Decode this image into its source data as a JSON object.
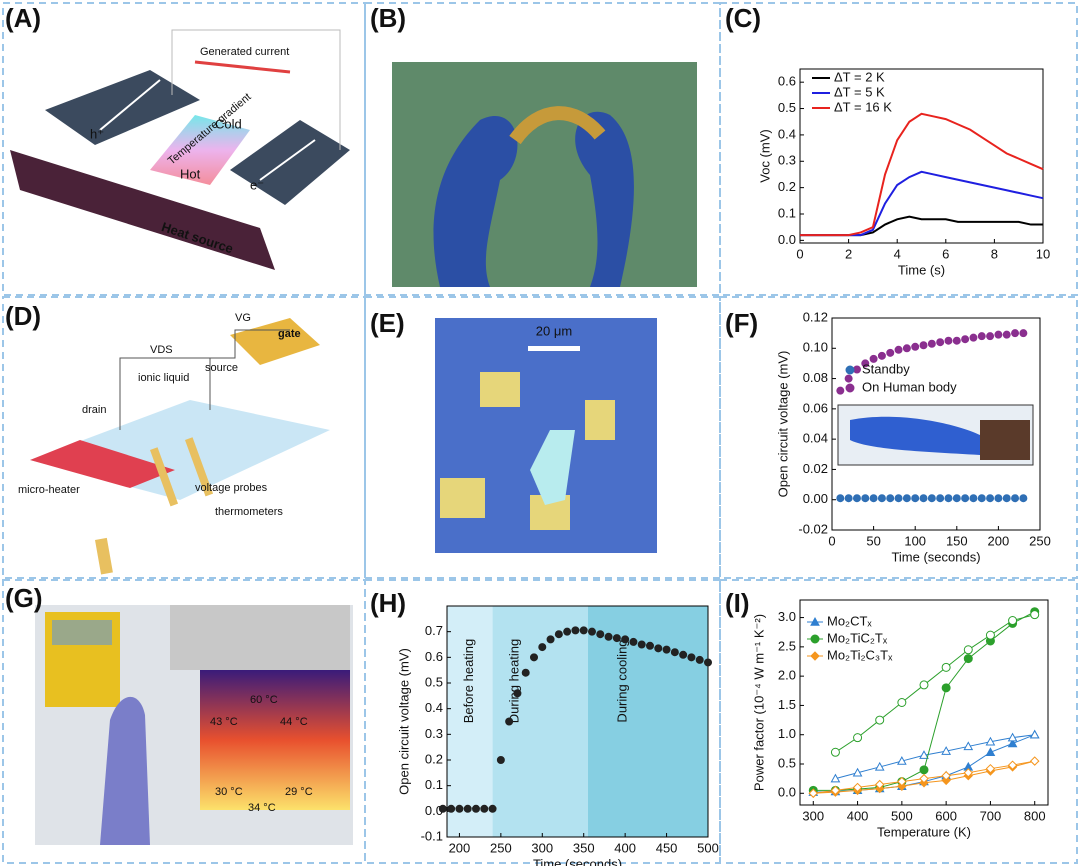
{
  "panels": [
    {
      "label": "(A)",
      "texts": [
        "Generated current",
        "Cold",
        "Hot",
        "Temperature gradient",
        "Heat source",
        "h⁺",
        "e⁻"
      ]
    },
    {
      "label": "(B)"
    },
    {
      "label": "(C)"
    },
    {
      "label": "(D)",
      "texts": [
        "VDS",
        "VG",
        "source",
        "ionic liquid",
        "drain",
        "gate",
        "micro-heater",
        "voltage probes",
        "thermometers"
      ]
    },
    {
      "label": "(E)",
      "texts": [
        "20 μm"
      ]
    },
    {
      "label": "(F)"
    },
    {
      "label": "(G)",
      "texts": [
        "60 °C",
        "43 °C",
        "44 °C",
        "30 °C",
        "29 °C",
        "34 °C"
      ]
    },
    {
      "label": "(H)"
    },
    {
      "label": "(I)"
    }
  ],
  "chart_data": [
    {
      "type": "line",
      "xlabel": "Time (s)",
      "ylabel": "Voc (mV)",
      "legend": "upper left",
      "x": [
        0,
        0.5,
        1,
        1.5,
        2,
        2.5,
        3,
        3.5,
        4,
        4.5,
        5,
        5.5,
        6,
        6.5,
        7,
        7.5,
        8,
        8.5,
        9,
        9.5,
        10
      ],
      "xlim": [
        0,
        10
      ],
      "xticks": [
        0,
        2,
        4,
        6,
        8,
        10
      ],
      "ylim": [
        -0.01,
        0.65
      ],
      "yticks": [
        {
          "value": 0,
          "label": "0.0"
        },
        0.1,
        0.2,
        0.3,
        0.4,
        0.5,
        0.6
      ],
      "series": [
        {
          "name": "ΔT = 2 K",
          "color": "#000000",
          "values": [
            0.02,
            0.02,
            0.02,
            0.02,
            0.02,
            0.02,
            0.03,
            0.06,
            0.08,
            0.09,
            0.08,
            0.08,
            0.08,
            0.07,
            0.07,
            0.07,
            0.07,
            0.07,
            0.07,
            0.06,
            0.06
          ]
        },
        {
          "name": "ΔT = 5 K",
          "color": "#1f1fe0",
          "values": [
            0.02,
            0.02,
            0.02,
            0.02,
            0.02,
            0.02,
            0.04,
            0.14,
            0.21,
            0.24,
            0.26,
            0.25,
            0.24,
            0.23,
            0.22,
            0.21,
            0.2,
            0.19,
            0.18,
            0.17,
            0.16
          ]
        },
        {
          "name": "ΔT = 16 K",
          "color": "#e8231e",
          "values": [
            0.02,
            0.02,
            0.02,
            0.02,
            0.02,
            0.03,
            0.05,
            0.25,
            0.38,
            0.45,
            0.48,
            0.47,
            0.46,
            0.44,
            0.42,
            0.39,
            0.36,
            0.33,
            0.31,
            0.29,
            0.27
          ]
        }
      ]
    },
    {
      "type": "scatter",
      "xlabel": "Time (seconds)",
      "ylabel": "Open circuit voltage (mV)",
      "legend": "center left",
      "x": [
        10,
        20,
        30,
        40,
        50,
        60,
        70,
        80,
        90,
        100,
        110,
        120,
        130,
        140,
        150,
        160,
        170,
        180,
        190,
        200,
        210,
        220,
        230
      ],
      "xlim": [
        0,
        250
      ],
      "xticks": [
        0,
        50,
        100,
        150,
        200,
        250
      ],
      "ylim": [
        -0.02,
        0.12
      ],
      "yticks": [
        -0.02,
        {
          "value": 0,
          "label": "0.00"
        },
        0.02,
        0.04,
        0.06,
        0.08,
        {
          "value": 0.1,
          "label": "0.10"
        },
        0.12
      ],
      "series": [
        {
          "name": "Standby",
          "color": "#2f6fb5",
          "values": [
            0.001,
            0.001,
            0.001,
            0.001,
            0.001,
            0.001,
            0.001,
            0.001,
            0.001,
            0.001,
            0.001,
            0.001,
            0.001,
            0.001,
            0.001,
            0.001,
            0.001,
            0.001,
            0.001,
            0.001,
            0.001,
            0.001,
            0.001
          ]
        },
        {
          "name": "On Human body",
          "color": "#8a2f8f",
          "values": [
            0.072,
            0.08,
            0.086,
            0.09,
            0.093,
            0.095,
            0.097,
            0.099,
            0.1,
            0.101,
            0.102,
            0.103,
            0.104,
            0.105,
            0.105,
            0.106,
            0.107,
            0.108,
            0.108,
            0.109,
            0.109,
            0.11,
            0.11
          ]
        }
      ]
    },
    {
      "type": "scatter",
      "xlabel": "Time (seconds)",
      "ylabel": "Open circuit voltage (mV)",
      "regions": [
        {
          "label": "Before heating",
          "x0": 185,
          "x1": 240,
          "color": "#d3eef8"
        },
        {
          "label": "During heating",
          "x0": 240,
          "x1": 355,
          "color": "#b3e2f0"
        },
        {
          "label": "During cooling",
          "x0": 355,
          "x1": 500,
          "color": "#86cfe2"
        }
      ],
      "x": [
        180,
        190,
        200,
        210,
        220,
        230,
        240,
        250,
        260,
        270,
        280,
        290,
        300,
        310,
        320,
        330,
        340,
        350,
        360,
        370,
        380,
        390,
        400,
        410,
        420,
        430,
        440,
        450,
        460,
        470,
        480,
        490,
        500
      ],
      "xlim": [
        185,
        500
      ],
      "xticks": [
        200,
        250,
        300,
        350,
        400,
        450,
        500
      ],
      "ylim": [
        -0.1,
        0.8
      ],
      "yticks": [
        -0.1,
        {
          "value": 0,
          "label": "0.0"
        },
        0.1,
        0.2,
        0.3,
        0.4,
        0.5,
        0.6,
        0.7
      ],
      "series": [
        {
          "name": "Open circuit voltage",
          "color": "#222222",
          "values": [
            0.01,
            0.01,
            0.01,
            0.01,
            0.01,
            0.01,
            0.01,
            0.2,
            0.35,
            0.46,
            0.54,
            0.6,
            0.64,
            0.67,
            0.69,
            0.7,
            0.705,
            0.705,
            0.7,
            0.69,
            0.68,
            0.675,
            0.67,
            0.66,
            0.65,
            0.645,
            0.635,
            0.63,
            0.62,
            0.61,
            0.6,
            0.59,
            0.58
          ]
        }
      ]
    },
    {
      "type": "scatter",
      "xlabel": "Temperature (K)",
      "ylabel": "Power factor (10⁻⁴ W m⁻¹ K⁻²)",
      "legend": "upper left",
      "x": [
        300,
        350,
        400,
        450,
        500,
        550,
        600,
        650,
        700,
        750,
        800
      ],
      "xlim": [
        270,
        830
      ],
      "xticks": [
        300,
        400,
        500,
        600,
        700,
        800
      ],
      "ylim": [
        -0.2,
        3.3
      ],
      "yticks": [
        {
          "value": 0,
          "label": "0.0"
        },
        0.5,
        {
          "value": 1,
          "label": "1.0"
        },
        1.5,
        {
          "value": 2,
          "label": "2.0"
        },
        2.5,
        {
          "value": 3,
          "label": "3.0"
        }
      ],
      "series": [
        {
          "name": "Mo₂CTₓ",
          "color": "#2f7fd0",
          "marker": "triangle",
          "values": [
            0.02,
            0.03,
            0.05,
            0.08,
            0.12,
            0.2,
            0.3,
            0.45,
            0.7,
            0.85,
            1.0
          ],
          "cooling_values": [
            null,
            0.25,
            0.35,
            0.45,
            0.55,
            0.65,
            0.72,
            0.8,
            0.88,
            0.95,
            1.0
          ]
        },
        {
          "name": "Mo₂TiC₂Tₓ",
          "color": "#2ca02c",
          "marker": "circle",
          "values": [
            0.05,
            0.05,
            0.07,
            0.1,
            0.2,
            0.4,
            1.8,
            2.3,
            2.6,
            2.9,
            3.1
          ],
          "cooling_values": [
            null,
            0.7,
            0.95,
            1.25,
            1.55,
            1.85,
            2.15,
            2.45,
            2.7,
            2.95,
            3.05
          ]
        },
        {
          "name": "Mo₂Ti₂C₃Tₓ",
          "color": "#f5961e",
          "marker": "diamond",
          "values": [
            0,
            0.02,
            0.05,
            0.08,
            0.12,
            0.18,
            0.22,
            0.3,
            0.38,
            0.45,
            0.55
          ],
          "cooling_values": [
            0,
            0.05,
            0.1,
            0.15,
            0.2,
            0.25,
            0.3,
            0.35,
            0.42,
            0.48,
            0.55
          ]
        }
      ]
    }
  ]
}
